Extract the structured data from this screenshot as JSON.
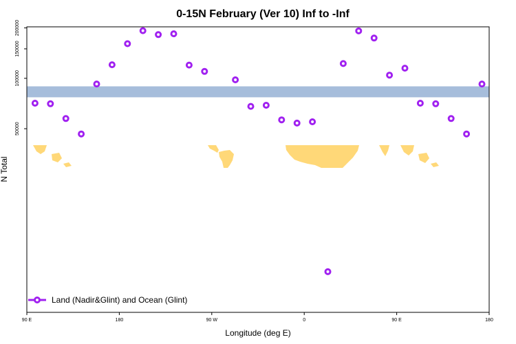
{
  "chart_data": {
    "type": "scatter",
    "title": "0-15N February (Ver 10)   Inf to -Inf",
    "xlabel": "Longitude (deg E)",
    "ylabel": "N Total",
    "x_ticks": [
      {
        "value": 90,
        "label": "90 E"
      },
      {
        "value": 180,
        "label": "180"
      },
      {
        "value": 270,
        "label": "90 W"
      },
      {
        "value": 360,
        "label": "0"
      },
      {
        "value": 450,
        "label": "90 E"
      },
      {
        "value": 540,
        "label": "180"
      }
    ],
    "y_ticks": [
      {
        "value": 50000,
        "label": "50000"
      },
      {
        "value": 100000,
        "label": "100000"
      },
      {
        "value": 150000,
        "label": "150000"
      },
      {
        "value": 200000,
        "label": "200000"
      }
    ],
    "xlim": [
      90,
      540
    ],
    "ylim": [
      4000,
      203000
    ],
    "series": [
      {
        "name": "Land (Nadir&Glint) and Ocean (Glint)",
        "color": "#a020f0",
        "x": [
          98,
          113,
          128,
          143,
          158,
          173,
          188,
          203,
          218,
          233,
          248,
          263,
          293,
          308,
          323,
          338,
          353,
          368,
          383,
          398,
          413,
          428,
          443,
          458,
          473,
          488,
          503,
          518,
          533
        ],
        "y": [
          71000,
          70500,
          57500,
          46500,
          92500,
          120500,
          161000,
          192500,
          182500,
          184500,
          120000,
          110000,
          98000,
          68000,
          69000,
          56500,
          54000,
          55000,
          7000,
          122500,
          192000,
          174000,
          104500,
          115000,
          71000,
          70500,
          57500,
          46500,
          92500
        ]
      }
    ],
    "map_strip": {
      "y_top": 89500,
      "y_bottom": 77000,
      "ocean_color": "#a6bddb",
      "land_color": "#ffd878"
    },
    "legend": {
      "position": "bottom-left",
      "entries": [
        "Land (Nadir&Glint) and Ocean (Glint)"
      ]
    }
  }
}
